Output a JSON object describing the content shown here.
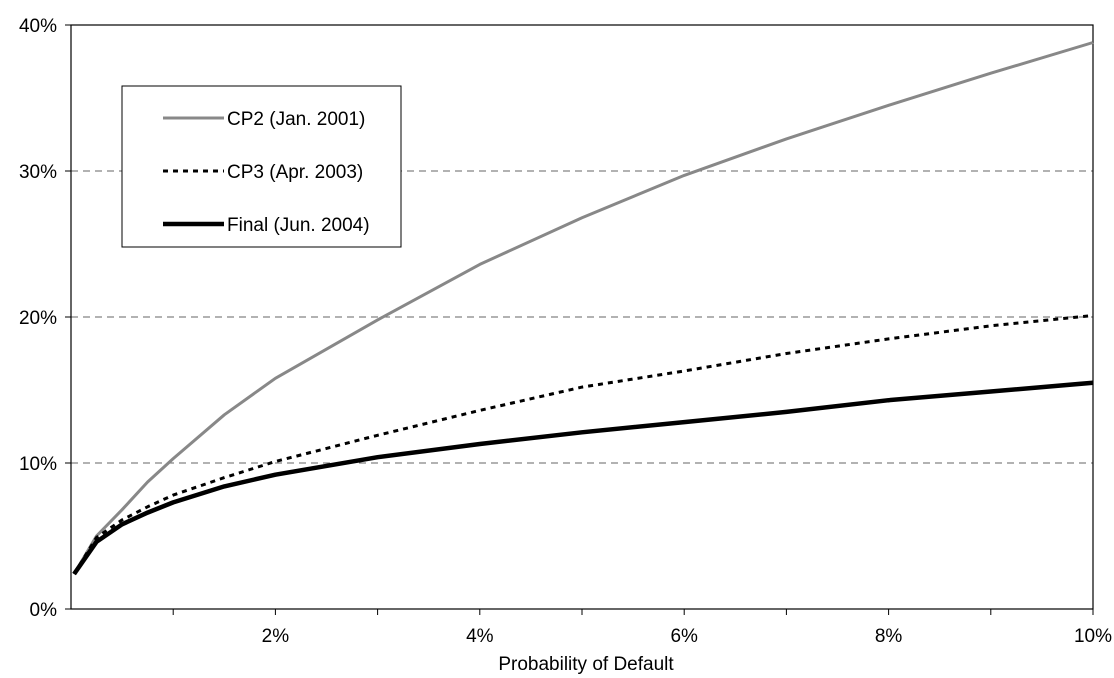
{
  "chart_data": {
    "type": "line",
    "title": "",
    "xlabel": "Probability of Default",
    "ylabel": "",
    "xlim": [
      0,
      0.1
    ],
    "ylim": [
      0,
      0.4
    ],
    "x_ticks": [
      0.02,
      0.04,
      0.06,
      0.08,
      0.1
    ],
    "x_tick_labels": [
      "2%",
      "4%",
      "6%",
      "8%",
      "10%"
    ],
    "y_ticks": [
      0,
      0.1,
      0.2,
      0.3,
      0.4
    ],
    "y_tick_labels": [
      "0%",
      "10%",
      "20%",
      "30%",
      "40%"
    ],
    "grid": "horizontal dashed",
    "legend_position": "top-left",
    "x": [
      0.0003,
      0.0025,
      0.005,
      0.0075,
      0.01,
      0.015,
      0.02,
      0.03,
      0.04,
      0.05,
      0.06,
      0.07,
      0.08,
      0.09,
      0.1
    ],
    "series": [
      {
        "name": "CP2 (Jan. 2001)",
        "color": "#888888",
        "style": "solid",
        "values": [
          0.024,
          0.05,
          0.068,
          0.087,
          0.103,
          0.133,
          0.158,
          0.198,
          0.236,
          0.268,
          0.297,
          0.322,
          0.345,
          0.367,
          0.388
        ]
      },
      {
        "name": "CP3 (Apr. 2003)",
        "color": "#000000",
        "style": "dotted",
        "values": [
          0.024,
          0.049,
          0.061,
          0.07,
          0.078,
          0.09,
          0.101,
          0.119,
          0.136,
          0.152,
          0.163,
          0.175,
          0.185,
          0.194,
          0.201
        ]
      },
      {
        "name": "Final (Jun. 2004)",
        "color": "#000000",
        "style": "solid-bold",
        "values": [
          0.024,
          0.046,
          0.058,
          0.066,
          0.073,
          0.084,
          0.092,
          0.104,
          0.113,
          0.121,
          0.128,
          0.135,
          0.143,
          0.149,
          0.155
        ]
      }
    ]
  }
}
